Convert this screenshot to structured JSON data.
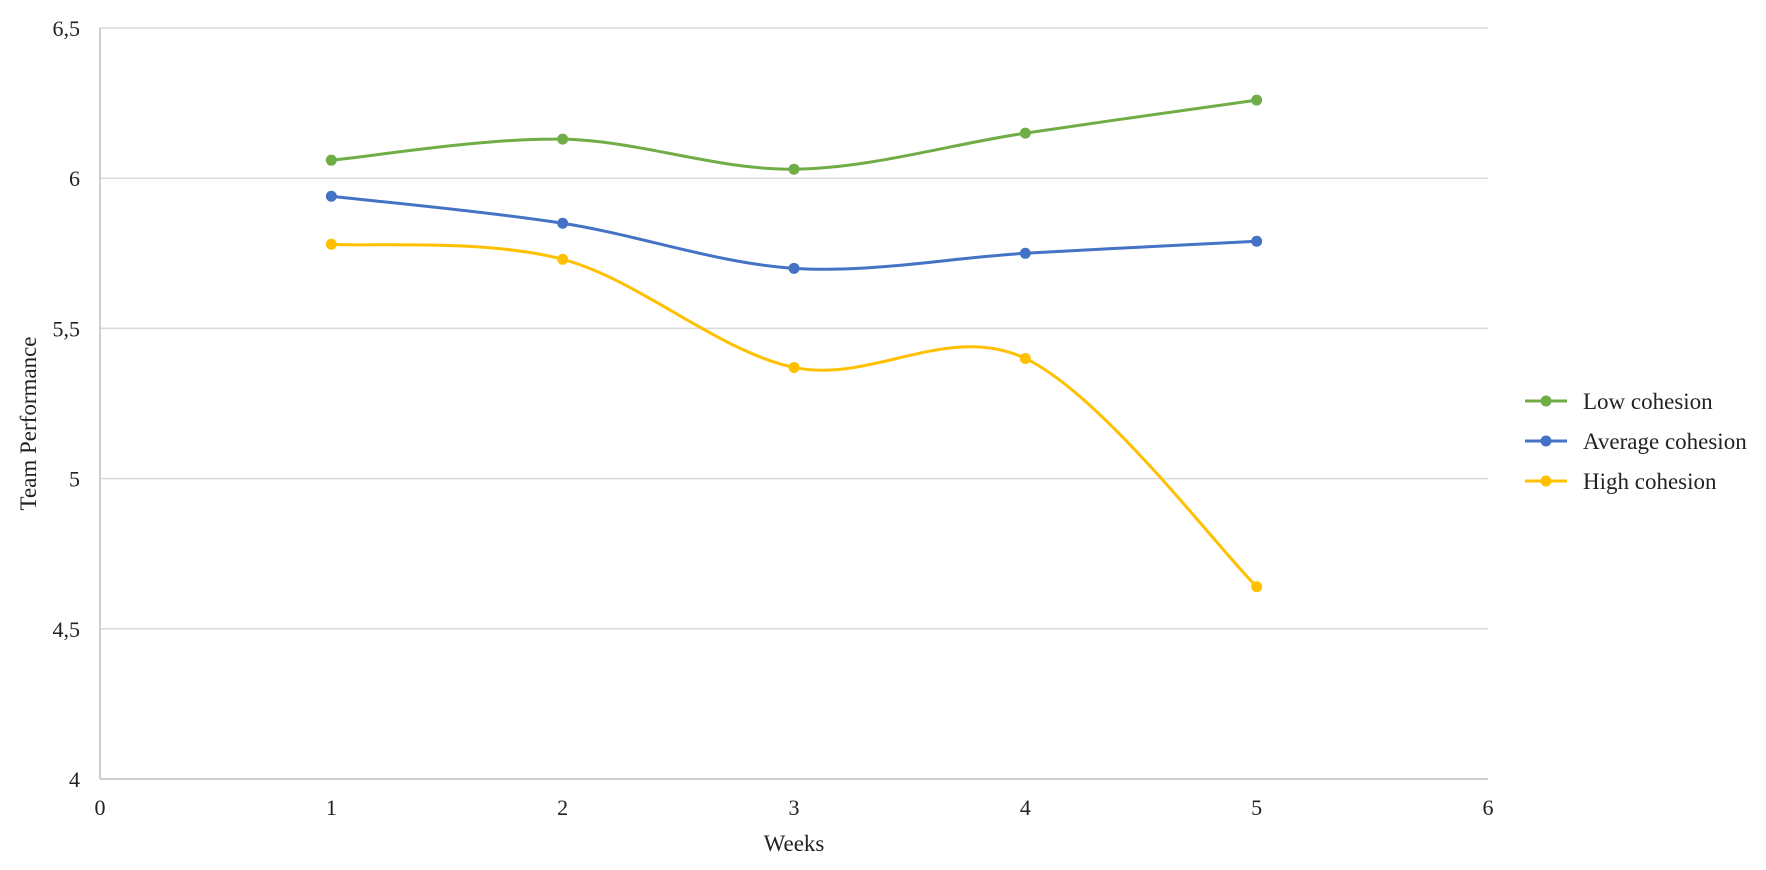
{
  "chart_data": {
    "type": "scatter",
    "title": "",
    "xlabel": "Weeks",
    "ylabel": "Team Performance",
    "xlim": [
      0,
      6
    ],
    "ylim": [
      4,
      6.5
    ],
    "x_ticks": [
      0,
      1,
      2,
      3,
      4,
      5,
      6
    ],
    "x_tick_labels": [
      "0",
      "1",
      "2",
      "3",
      "4",
      "5",
      "6"
    ],
    "y_ticks": [
      4,
      4.5,
      5,
      5.5,
      6,
      6.5
    ],
    "y_tick_labels": [
      "4",
      "4,5",
      "5",
      "5,5",
      "6",
      "6,5"
    ],
    "grid": "horizontal",
    "legend_position": "right",
    "line_style": "smooth-with-markers",
    "series": [
      {
        "name": "Low cohesion",
        "color": "#70ad47",
        "x": [
          1,
          2,
          3,
          4,
          5
        ],
        "y": [
          6.06,
          6.13,
          6.03,
          6.15,
          6.26
        ]
      },
      {
        "name": "Average cohesion",
        "color": "#4472c4",
        "x": [
          1,
          2,
          3,
          4,
          5
        ],
        "y": [
          5.94,
          5.85,
          5.7,
          5.75,
          5.79
        ]
      },
      {
        "name": "High cohesion",
        "color": "#ffc000",
        "x": [
          1,
          2,
          3,
          4,
          5
        ],
        "y": [
          5.78,
          5.73,
          5.37,
          5.4,
          4.64
        ]
      }
    ]
  }
}
